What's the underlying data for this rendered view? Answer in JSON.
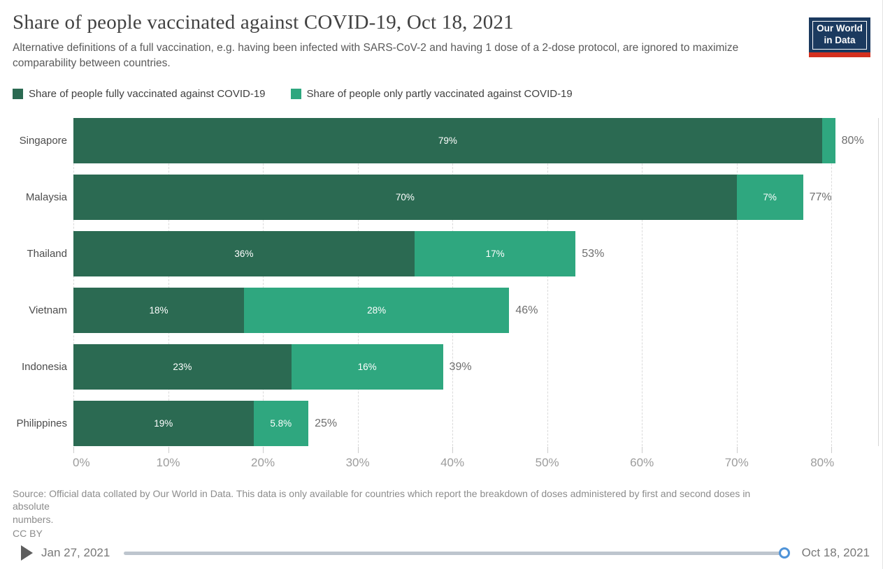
{
  "header": {
    "title": "Share of people vaccinated against COVID-19, Oct 18, 2021",
    "subtitle": "Alternative definitions of a full vaccination, e.g. having been infected with SARS-CoV-2 and having 1 dose of a 2-dose protocol, are ignored to maximize comparability between countries.",
    "logo": {
      "line1": "Our World",
      "line2": "in Data",
      "bg_color": "#1b3a5f",
      "accent_color": "#d4301f"
    }
  },
  "legend": {
    "items": [
      {
        "label": "Share of people fully vaccinated against COVID-19",
        "color": "#2b6a52"
      },
      {
        "label": "Share of people only partly vaccinated against COVID-19",
        "color": "#2fa77f"
      }
    ]
  },
  "chart_data": {
    "type": "bar",
    "orientation": "horizontal",
    "stacked": true,
    "title": "Share of people vaccinated against COVID-19, Oct 18, 2021",
    "xlabel": "",
    "ylabel": "",
    "grid": "dashed-vertical",
    "legend_position": "top",
    "categories": [
      "Singapore",
      "Malaysia",
      "Thailand",
      "Vietnam",
      "Indonesia",
      "Philippines"
    ],
    "series": [
      {
        "name": "Share of people fully vaccinated against COVID-19",
        "color": "#2b6a52",
        "values": [
          79,
          70,
          36,
          18,
          23,
          19
        ],
        "labels": [
          "79%",
          "70%",
          "36%",
          "18%",
          "23%",
          "19%"
        ]
      },
      {
        "name": "Share of people only partly vaccinated against COVID-19",
        "color": "#2fa77f",
        "values": [
          1.4,
          7,
          17,
          28,
          16,
          5.8
        ],
        "labels": [
          "",
          "7%",
          "17%",
          "28%",
          "16%",
          "5.8%"
        ]
      }
    ],
    "totals": [
      "80%",
      "77%",
      "53%",
      "46%",
      "39%",
      "25%"
    ],
    "total_values": [
      80,
      77,
      53,
      46,
      39,
      25
    ],
    "x_ticks": [
      "0%",
      "10%",
      "20%",
      "30%",
      "40%",
      "50%",
      "60%",
      "70%",
      "80%"
    ],
    "tick_values": [
      0,
      10,
      20,
      30,
      40,
      50,
      60,
      70,
      80
    ],
    "xmax": 85
  },
  "footer": {
    "lines": [
      "Source: Official data collated by Our World in Data. This data is only available for countries which report the breakdown of doses administered by first and second doses in",
      "absolute",
      "numbers."
    ],
    "license": "CC BY"
  },
  "timeline": {
    "start_label": "Jan 27, 2021",
    "end_label": "Oct 18, 2021"
  }
}
